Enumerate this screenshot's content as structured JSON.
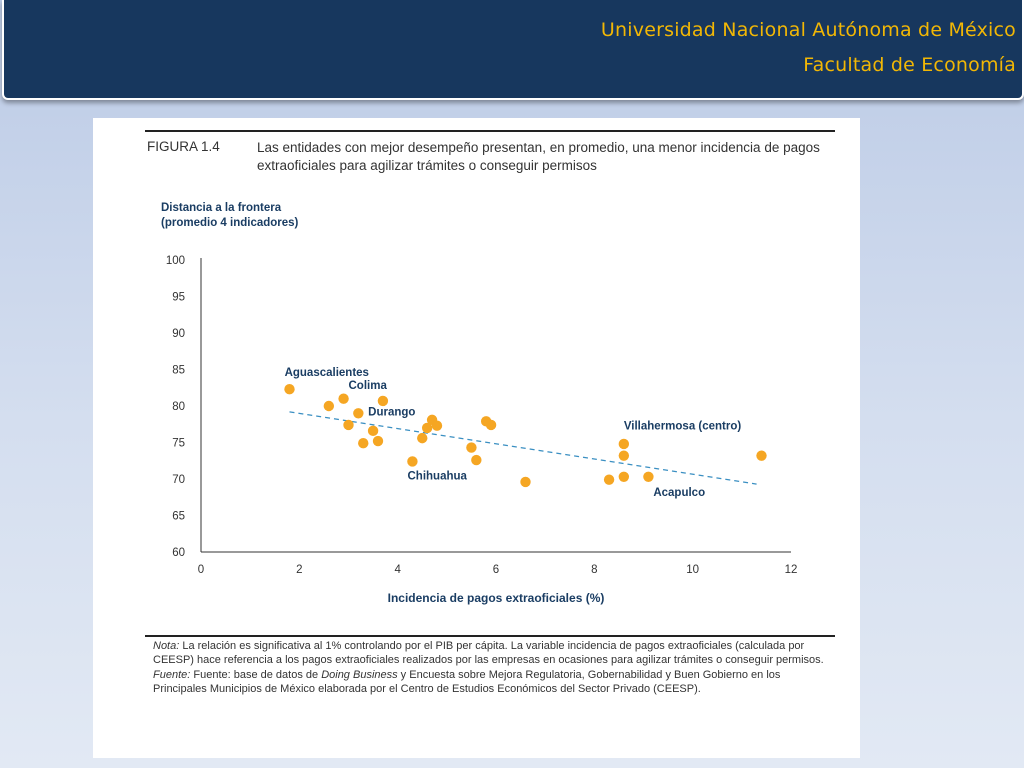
{
  "header": {
    "line1": "Universidad Nacional Autónoma de México",
    "line2": "Facultad de Economía"
  },
  "figure": {
    "number": "FIGURA 1.4",
    "title": "Las entidades con mejor desempeño presentan, en promedio, una menor incidencia de pagos extraoficiales para agilizar trámites o conseguir permisos",
    "note_label": "Nota:",
    "note_text": " La relación es significativa al 1% controlando por el PIB per cápita. La variable incidencia de pagos extraoficiales (calculada por CEESP) hace referencia a los pagos extraoficiales realizados por las empresas en ocasiones para agilizar trámites o conseguir permisos.",
    "source_label": "Fuente:",
    "source_text_1": " Fuente: base de datos de ",
    "source_italic": "Doing Business",
    "source_text_2": " y Encuesta sobre Mejora Regulatoria, Gobernabilidad y Buen Gobierno en los Principales Municipios de México elaborada por el Centro de Estudios Económicos del Sector Privado (CEESP)."
  },
  "chart_data": {
    "type": "scatter",
    "ylabel_line1": "Distancia a la frontera",
    "ylabel_line2": "(promedio 4 indicadores)",
    "xlabel": "Incidencia de pagos extraoficiales (%)",
    "xlim": [
      0,
      12
    ],
    "ylim": [
      60,
      100
    ],
    "xticks": [
      0,
      2,
      4,
      6,
      8,
      10,
      12
    ],
    "yticks": [
      60,
      65,
      70,
      75,
      80,
      85,
      90,
      95,
      100
    ],
    "grid": false,
    "point_color": "#f5a623",
    "trend_color": "#3a8fc2",
    "trendline": {
      "x": [
        1.8,
        11.3
      ],
      "y": [
        79.2,
        69.3
      ]
    },
    "points": [
      {
        "x": 1.8,
        "y": 82.3
      },
      {
        "x": 2.6,
        "y": 80.0
      },
      {
        "x": 2.9,
        "y": 81.0
      },
      {
        "x": 3.0,
        "y": 77.4
      },
      {
        "x": 3.2,
        "y": 79.0
      },
      {
        "x": 3.3,
        "y": 74.9
      },
      {
        "x": 3.5,
        "y": 76.6
      },
      {
        "x": 3.6,
        "y": 75.2
      },
      {
        "x": 3.7,
        "y": 80.7
      },
      {
        "x": 4.3,
        "y": 72.4
      },
      {
        "x": 4.5,
        "y": 75.6
      },
      {
        "x": 4.6,
        "y": 77.0
      },
      {
        "x": 4.7,
        "y": 78.1
      },
      {
        "x": 4.8,
        "y": 77.3
      },
      {
        "x": 5.5,
        "y": 74.3
      },
      {
        "x": 5.6,
        "y": 72.6
      },
      {
        "x": 5.8,
        "y": 77.9
      },
      {
        "x": 5.9,
        "y": 77.4
      },
      {
        "x": 6.6,
        "y": 69.6
      },
      {
        "x": 8.3,
        "y": 69.9
      },
      {
        "x": 8.6,
        "y": 70.3
      },
      {
        "x": 8.6,
        "y": 73.2
      },
      {
        "x": 8.6,
        "y": 74.8
      },
      {
        "x": 9.1,
        "y": 70.3
      },
      {
        "x": 11.4,
        "y": 73.2
      }
    ],
    "annotations": [
      {
        "text": "Aguascalientes",
        "x": 1.7,
        "y": 84.1
      },
      {
        "text": "Colima",
        "x": 3.0,
        "y": 82.3
      },
      {
        "text": "Durango",
        "x": 3.4,
        "y": 78.7
      },
      {
        "text": "Chihuahua",
        "x": 4.2,
        "y": 69.9
      },
      {
        "text": "Villahermosa (centro)",
        "x": 8.6,
        "y": 76.8
      },
      {
        "text": "Acapulco",
        "x": 9.2,
        "y": 67.7
      }
    ]
  }
}
